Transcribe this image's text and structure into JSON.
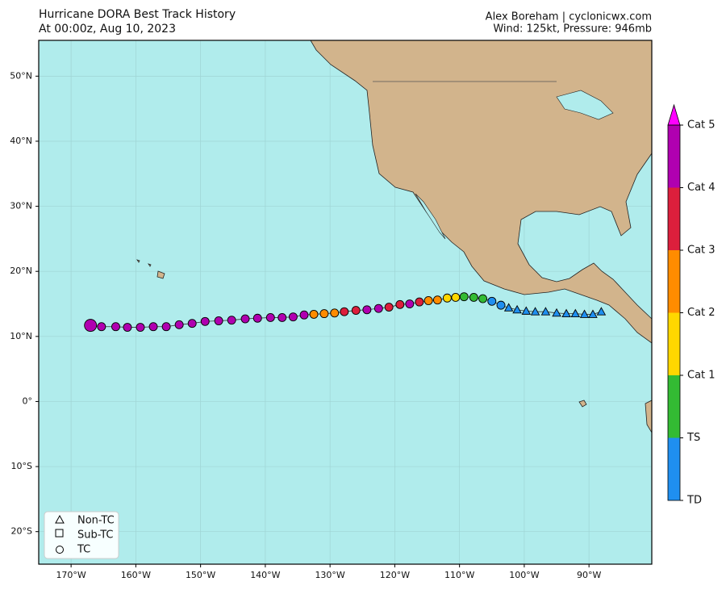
{
  "map": {
    "title": "Hurricane DORA Best Track History",
    "subtitle": "At 00:00z, Aug 10, 2023",
    "credit": "Alex Boreham | cyclonicwx.com",
    "info": "Wind: 125kt, Pressure: 946mb",
    "lonlim": [
      -175,
      -80.3
    ],
    "latlim": [
      -25,
      55.5
    ],
    "lonticks": [
      {
        "value": -170,
        "label": "170°W"
      },
      {
        "value": -160,
        "label": "160°W"
      },
      {
        "value": -150,
        "label": "150°W"
      },
      {
        "value": -140,
        "label": "140°W"
      },
      {
        "value": -130,
        "label": "130°W"
      },
      {
        "value": -120,
        "label": "120°W"
      },
      {
        "value": -110,
        "label": "110°W"
      },
      {
        "value": -100,
        "label": "100°W"
      },
      {
        "value": -90,
        "label": "90°W"
      }
    ],
    "latticks": [
      {
        "value": 50,
        "label": "50°N"
      },
      {
        "value": 40,
        "label": "40°N"
      },
      {
        "value": 30,
        "label": "30°N"
      },
      {
        "value": 20,
        "label": "20°N"
      },
      {
        "value": 10,
        "label": "10°N"
      },
      {
        "value": 0,
        "label": "0°"
      },
      {
        "value": -10,
        "label": "10°S"
      },
      {
        "value": -20,
        "label": "20°S"
      }
    ],
    "grid": true,
    "colorbar": {
      "labels": [
        "TD",
        "TS",
        "Cat 1",
        "Cat 2",
        "Cat 3",
        "Cat 4",
        "Cat 5"
      ],
      "colors": [
        "#1f8ff0",
        "#33bb33",
        "#ffd700",
        "#ff8c00",
        "#dc1f3c",
        "#b000b0",
        "#ff00ff"
      ]
    },
    "legend": [
      "Non-TC",
      "Sub-TC",
      "TC"
    ],
    "track": {
      "lon": [
        -88.1,
        -89.4,
        -90.7,
        -92.1,
        -93.5,
        -95.0,
        -96.7,
        -98.3,
        -99.7,
        -101.1,
        -102.4,
        -103.6,
        -105.0,
        -106.4,
        -107.8,
        -109.3,
        -110.6,
        -111.9,
        -113.4,
        -114.8,
        -116.2,
        -117.7,
        -119.2,
        -120.9,
        -122.5,
        -124.3,
        -126.0,
        -127.8,
        -129.3,
        -130.9,
        -132.5,
        -134.0,
        -135.7,
        -137.4,
        -139.2,
        -141.2,
        -143.1,
        -145.2,
        -147.2,
        -149.3,
        -151.3,
        -153.3,
        -155.3,
        -157.3,
        -159.3,
        -161.3,
        -163.1,
        -165.3,
        -167.0
      ],
      "lat": [
        13.8,
        13.4,
        13.4,
        13.5,
        13.5,
        13.6,
        13.8,
        13.8,
        13.9,
        14.1,
        14.4,
        14.8,
        15.4,
        15.8,
        16.0,
        16.1,
        16.0,
        15.9,
        15.6,
        15.5,
        15.3,
        15.0,
        14.9,
        14.5,
        14.3,
        14.1,
        14.0,
        13.8,
        13.6,
        13.5,
        13.4,
        13.3,
        13.0,
        12.9,
        12.9,
        12.8,
        12.7,
        12.5,
        12.4,
        12.3,
        12.0,
        11.8,
        11.5,
        11.5,
        11.4,
        11.4,
        11.5,
        11.5,
        11.7
      ],
      "category": [
        "TD",
        "TD",
        "TD",
        "TD",
        "TD",
        "TD",
        "TD",
        "TD",
        "TD",
        "TD",
        "TD",
        "TD",
        "TD",
        "TS",
        "TS",
        "TS",
        "Cat 1",
        "Cat 1",
        "Cat 2",
        "Cat 2",
        "Cat 3",
        "Cat 4",
        "Cat 3",
        "Cat 3",
        "Cat 4",
        "Cat 4",
        "Cat 3",
        "Cat 3",
        "Cat 2",
        "Cat 2",
        "Cat 2",
        "Cat 4",
        "Cat 4",
        "Cat 4",
        "Cat 4",
        "Cat 4",
        "Cat 4",
        "Cat 4",
        "Cat 4",
        "Cat 4",
        "Cat 4",
        "Cat 4",
        "Cat 4",
        "Cat 4",
        "Cat 4",
        "Cat 4",
        "Cat 4",
        "Cat 4",
        "Cat 4"
      ],
      "status": [
        "Non-TC",
        "Non-TC",
        "Non-TC",
        "Non-TC",
        "Non-TC",
        "Non-TC",
        "Non-TC",
        "Non-TC",
        "Non-TC",
        "Non-TC",
        "Non-TC",
        "TC",
        "TC",
        "TC",
        "TC",
        "TC",
        "TC",
        "TC",
        "TC",
        "TC",
        "TC",
        "TC",
        "TC",
        "TC",
        "TC",
        "TC",
        "TC",
        "TC",
        "TC",
        "TC",
        "TC",
        "TC",
        "TC",
        "TC",
        "TC",
        "TC",
        "TC",
        "TC",
        "TC",
        "TC",
        "TC",
        "TC",
        "TC",
        "TC",
        "TC",
        "TC",
        "TC",
        "TC",
        "TC"
      ]
    }
  }
}
